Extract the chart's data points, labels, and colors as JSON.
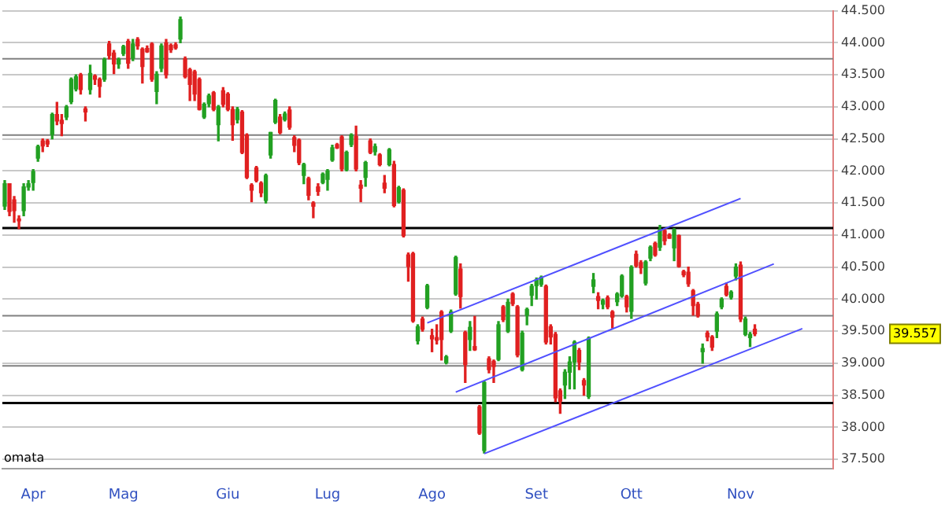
{
  "chart_data": {
    "type": "candlestick",
    "categories": [
      null,
      null,
      null,
      null,
      null,
      null,
      "Apr",
      null,
      null,
      null,
      null,
      null,
      null,
      null,
      null,
      null,
      null,
      null,
      null,
      null,
      null,
      null,
      null,
      null,
      null,
      "Mag",
      null,
      null,
      null,
      null,
      null,
      null,
      null,
      null,
      null,
      null,
      null,
      null,
      null,
      null,
      null,
      null,
      null,
      null,
      null,
      null,
      null,
      "Giu",
      null,
      null,
      null,
      null,
      null,
      null,
      null,
      null,
      null,
      null,
      null,
      null,
      null,
      null,
      null,
      null,
      null,
      null,
      null,
      null,
      "Lug",
      null,
      null,
      null,
      null,
      null,
      null,
      null,
      null,
      null,
      null,
      null,
      null,
      null,
      null,
      null,
      null,
      null,
      null,
      null,
      null,
      null,
      "Ago",
      null,
      null,
      null,
      null,
      null,
      null,
      null,
      null,
      null,
      null,
      null,
      null,
      null,
      null,
      null,
      null,
      null,
      null,
      null,
      null,
      null,
      "Set",
      null,
      null,
      null,
      null,
      null,
      null,
      null,
      null,
      null,
      null,
      null,
      null,
      null,
      null,
      null,
      null,
      null,
      null,
      null,
      "Ott",
      null,
      null,
      null,
      null,
      null,
      null,
      null,
      null,
      null,
      null,
      null,
      null,
      null,
      null,
      null,
      null,
      null,
      null,
      null,
      null,
      null,
      null,
      "Nov",
      null,
      null,
      null,
      null,
      null,
      null,
      null,
      null,
      null,
      null,
      null,
      null,
      null,
      null,
      null,
      null,
      null,
      null,
      null
    ],
    "ohlc": [
      [
        41.45,
        41.85,
        41.4,
        41.8
      ],
      [
        41.8,
        41.8,
        41.3,
        41.37
      ],
      [
        41.55,
        41.6,
        41.2,
        41.38
      ],
      [
        41.25,
        41.3,
        41.1,
        41.22
      ],
      [
        41.38,
        41.8,
        41.3,
        41.75
      ],
      [
        41.75,
        41.85,
        41.7,
        41.8
      ],
      [
        41.82,
        42.02,
        41.7,
        41.99
      ],
      [
        42.2,
        42.4,
        42.15,
        42.38
      ],
      [
        42.47,
        42.5,
        42.3,
        42.39
      ],
      [
        42.47,
        42.49,
        42.38,
        42.42
      ],
      [
        42.57,
        42.9,
        42.5,
        42.88
      ],
      [
        42.88,
        43.07,
        42.72,
        42.78
      ],
      [
        42.79,
        42.88,
        42.55,
        42.74
      ],
      [
        42.84,
        43.02,
        42.8,
        43.0
      ],
      [
        43.08,
        43.45,
        43.05,
        43.43
      ],
      [
        43.28,
        43.5,
        43.25,
        43.47
      ],
      [
        43.5,
        43.52,
        43.2,
        43.27
      ],
      [
        42.97,
        43.0,
        42.78,
        42.92
      ],
      [
        43.27,
        43.65,
        43.2,
        43.52
      ],
      [
        43.48,
        43.5,
        43.35,
        43.43
      ],
      [
        43.43,
        43.45,
        43.15,
        43.32
      ],
      [
        43.43,
        43.76,
        43.4,
        43.74
      ],
      [
        43.98,
        44.02,
        43.75,
        43.8
      ],
      [
        43.84,
        43.88,
        43.52,
        43.67
      ],
      [
        43.67,
        43.76,
        43.6,
        43.74
      ],
      [
        43.83,
        43.96,
        43.8,
        43.94
      ],
      [
        44.02,
        44.05,
        43.6,
        43.68
      ],
      [
        43.76,
        44.05,
        43.72,
        43.98
      ],
      [
        44.05,
        44.08,
        43.9,
        43.95
      ],
      [
        43.9,
        43.92,
        43.37,
        43.63
      ],
      [
        43.91,
        43.95,
        43.85,
        43.86
      ],
      [
        43.98,
        44.0,
        43.4,
        43.43
      ],
      [
        43.24,
        43.55,
        43.05,
        43.51
      ],
      [
        43.6,
        43.98,
        43.55,
        43.95
      ],
      [
        44.0,
        44.05,
        43.45,
        43.5
      ],
      [
        43.96,
        43.98,
        43.85,
        43.89
      ],
      [
        43.97,
        44.0,
        43.9,
        43.92
      ],
      [
        44.06,
        44.4,
        44.0,
        44.36
      ],
      [
        43.75,
        43.78,
        43.45,
        43.47
      ],
      [
        43.58,
        43.6,
        43.1,
        43.35
      ],
      [
        43.55,
        43.57,
        43.1,
        43.2
      ],
      [
        43.43,
        43.45,
        42.95,
        42.96
      ],
      [
        42.84,
        43.06,
        42.82,
        43.04
      ],
      [
        43.05,
        43.2,
        43.0,
        43.17
      ],
      [
        43.22,
        43.24,
        42.94,
        42.96
      ],
      [
        42.72,
        43.02,
        42.47,
        43.0
      ],
      [
        43.25,
        43.3,
        43.0,
        43.04
      ],
      [
        43.2,
        43.22,
        42.94,
        42.96
      ],
      [
        42.96,
        43.0,
        42.48,
        42.72
      ],
      [
        42.8,
        42.99,
        42.75,
        42.96
      ],
      [
        42.92,
        42.94,
        42.27,
        42.29
      ],
      [
        42.56,
        42.58,
        41.88,
        41.9
      ],
      [
        41.78,
        41.8,
        41.52,
        41.7
      ],
      [
        42.05,
        42.07,
        41.83,
        41.85
      ],
      [
        41.81,
        41.83,
        41.6,
        41.66
      ],
      [
        41.54,
        41.95,
        41.5,
        41.93
      ],
      [
        42.25,
        42.6,
        42.2,
        42.6
      ],
      [
        42.76,
        43.12,
        42.74,
        43.1
      ],
      [
        42.84,
        42.88,
        42.58,
        42.6
      ],
      [
        42.8,
        42.92,
        42.78,
        42.89
      ],
      [
        42.95,
        43.0,
        42.65,
        42.68
      ],
      [
        42.52,
        42.55,
        42.3,
        42.4
      ],
      [
        42.48,
        42.5,
        42.1,
        42.13
      ],
      [
        41.93,
        42.12,
        41.8,
        42.1
      ],
      [
        41.88,
        41.9,
        41.55,
        41.62
      ],
      [
        41.5,
        41.52,
        41.27,
        41.45
      ],
      [
        41.75,
        41.8,
        41.62,
        41.68
      ],
      [
        41.82,
        41.97,
        41.8,
        41.95
      ],
      [
        41.87,
        42.02,
        41.7,
        42.0
      ],
      [
        42.17,
        42.4,
        42.15,
        42.36
      ],
      [
        42.41,
        42.43,
        42.35,
        42.36
      ],
      [
        42.53,
        42.55,
        42.0,
        42.03
      ],
      [
        42.02,
        42.31,
        42.0,
        42.29
      ],
      [
        42.41,
        42.58,
        42.38,
        42.56
      ],
      [
        42.54,
        42.7,
        42.0,
        42.03
      ],
      [
        41.78,
        41.85,
        41.52,
        41.73
      ],
      [
        41.9,
        42.15,
        41.76,
        42.13
      ],
      [
        42.47,
        42.5,
        42.27,
        42.29
      ],
      [
        42.3,
        42.42,
        42.25,
        42.38
      ],
      [
        42.25,
        42.27,
        42.08,
        42.1
      ],
      [
        41.81,
        41.93,
        41.66,
        41.73
      ],
      [
        42.1,
        42.35,
        42.08,
        42.33
      ],
      [
        42.1,
        42.15,
        41.44,
        41.46
      ],
      [
        41.52,
        41.76,
        41.5,
        41.74
      ],
      [
        41.7,
        41.72,
        40.97,
        40.99
      ],
      [
        40.69,
        40.72,
        40.28,
        40.51
      ],
      [
        40.71,
        40.73,
        39.64,
        39.66
      ],
      [
        39.35,
        39.6,
        39.3,
        39.57
      ],
      [
        39.69,
        39.72,
        39.5,
        39.53
      ],
      [
        39.87,
        40.23,
        39.85,
        40.21
      ],
      [
        39.43,
        39.53,
        39.18,
        39.38
      ],
      [
        39.4,
        39.6,
        39.3,
        39.36
      ],
      [
        39.8,
        39.82,
        39.05,
        39.37
      ],
      [
        39.01,
        39.12,
        38.99,
        39.1
      ],
      [
        39.5,
        39.83,
        39.48,
        39.8
      ],
      [
        40.08,
        40.67,
        40.06,
        40.65
      ],
      [
        40.47,
        40.55,
        39.86,
        40.04
      ],
      [
        39.48,
        39.5,
        38.7,
        38.98
      ],
      [
        39.37,
        39.65,
        39.2,
        39.56
      ],
      [
        39.26,
        39.73,
        39.2,
        39.21
      ],
      [
        38.32,
        38.34,
        37.89,
        37.91
      ],
      [
        37.64,
        38.72,
        37.6,
        38.7
      ],
      [
        39.07,
        39.1,
        38.85,
        38.9
      ],
      [
        39.03,
        39.05,
        38.7,
        38.95
      ],
      [
        39.06,
        39.65,
        39.04,
        39.6
      ],
      [
        39.88,
        39.9,
        39.65,
        39.68
      ],
      [
        39.5,
        40.0,
        39.48,
        39.95
      ],
      [
        40.08,
        40.1,
        39.9,
        39.93
      ],
      [
        39.88,
        39.9,
        39.1,
        39.13
      ],
      [
        38.9,
        39.5,
        38.88,
        39.47
      ],
      [
        39.75,
        39.86,
        39.6,
        39.84
      ],
      [
        40.06,
        40.23,
        39.9,
        40.2
      ],
      [
        40.21,
        40.33,
        40.0,
        40.3
      ],
      [
        40.23,
        40.36,
        40.2,
        40.34
      ],
      [
        40.2,
        40.22,
        39.3,
        39.33
      ],
      [
        39.57,
        39.6,
        39.3,
        39.41
      ],
      [
        39.45,
        39.48,
        38.4,
        38.46
      ],
      [
        38.57,
        38.6,
        38.22,
        38.41
      ],
      [
        38.66,
        38.9,
        38.45,
        38.86
      ],
      [
        38.86,
        39.1,
        38.6,
        39.02
      ],
      [
        39.02,
        39.35,
        38.6,
        39.33
      ],
      [
        39.2,
        39.23,
        38.9,
        39.02
      ],
      [
        38.73,
        38.76,
        38.5,
        38.66
      ],
      [
        38.48,
        39.41,
        38.45,
        39.39
      ],
      [
        40.2,
        40.4,
        40.1,
        40.3
      ],
      [
        40.04,
        40.1,
        39.85,
        39.98
      ],
      [
        39.92,
        40.0,
        39.85,
        39.98
      ],
      [
        40.02,
        40.05,
        39.85,
        39.88
      ],
      [
        39.8,
        39.82,
        39.55,
        39.72
      ],
      [
        39.96,
        40.1,
        39.9,
        40.08
      ],
      [
        40.05,
        40.38,
        40.03,
        40.36
      ],
      [
        40.04,
        40.06,
        39.8,
        39.88
      ],
      [
        39.81,
        40.52,
        39.7,
        40.5
      ],
      [
        40.7,
        40.75,
        40.5,
        40.52
      ],
      [
        40.57,
        40.6,
        40.4,
        40.49
      ],
      [
        40.25,
        40.6,
        40.22,
        40.58
      ],
      [
        40.64,
        40.83,
        40.6,
        40.81
      ],
      [
        40.87,
        40.89,
        40.67,
        40.69
      ],
      [
        40.81,
        41.15,
        40.76,
        41.09
      ],
      [
        41.07,
        41.1,
        40.85,
        40.91
      ],
      [
        41.0,
        41.02,
        40.95,
        40.95
      ],
      [
        40.8,
        41.1,
        40.6,
        41.08
      ],
      [
        40.99,
        41.0,
        40.5,
        40.51
      ],
      [
        40.43,
        40.45,
        40.35,
        40.38
      ],
      [
        40.42,
        40.5,
        40.2,
        40.24
      ],
      [
        40.13,
        40.15,
        39.75,
        39.9
      ],
      [
        39.92,
        39.95,
        39.72,
        39.74
      ],
      [
        39.18,
        39.3,
        39.0,
        39.23
      ],
      [
        39.47,
        39.5,
        39.35,
        39.41
      ],
      [
        39.41,
        39.43,
        39.2,
        39.25
      ],
      [
        39.5,
        39.8,
        39.4,
        39.77
      ],
      [
        39.88,
        40.02,
        39.85,
        40.0
      ],
      [
        40.2,
        40.25,
        40.05,
        40.07
      ],
      [
        40.03,
        40.13,
        40.0,
        40.11
      ],
      [
        40.36,
        40.55,
        40.3,
        40.5
      ],
      [
        40.53,
        40.58,
        39.65,
        39.69
      ],
      [
        39.45,
        39.72,
        39.43,
        39.69
      ],
      [
        39.4,
        39.48,
        39.26,
        39.45
      ],
      [
        39.53,
        39.6,
        39.43,
        39.46
      ],
      null,
      null,
      null,
      null,
      null,
      null,
      null,
      null,
      null,
      null,
      null,
      null,
      null,
      null,
      null,
      null
    ],
    "ylim": [
      37.35,
      44.5
    ],
    "yticks": [
      {
        "value": 37.5,
        "label": "37.500"
      },
      {
        "value": 38,
        "label": "38.000"
      },
      {
        "value": 38.5,
        "label": "38.500"
      },
      {
        "value": 39,
        "label": "39.000"
      },
      {
        "value": 39.5,
        "label": "39.500"
      },
      {
        "value": 40,
        "label": "40.000"
      },
      {
        "value": 40.5,
        "label": "40.500"
      },
      {
        "value": 41,
        "label": "41.000"
      },
      {
        "value": 41.5,
        "label": "41.500"
      },
      {
        "value": 42,
        "label": "42.000"
      },
      {
        "value": 42.5,
        "label": "42.500"
      },
      {
        "value": 43,
        "label": "43.000"
      },
      {
        "value": 43.5,
        "label": "43.500"
      },
      {
        "value": 44,
        "label": "44.000"
      },
      {
        "value": 44.5,
        "label": "44.500"
      }
    ],
    "grid": "y",
    "legend": false,
    "series": [
      {
        "type": "line",
        "color": "#5050ff",
        "values": [
          null,
          null,
          null,
          null,
          null,
          null,
          null,
          null,
          null,
          null,
          null,
          null,
          null,
          null,
          null,
          null,
          null,
          null,
          null,
          null,
          null,
          null,
          null,
          null,
          null,
          null,
          null,
          null,
          null,
          null,
          null,
          null,
          null,
          null,
          null,
          null,
          null,
          null,
          null,
          null,
          null,
          null,
          null,
          null,
          null,
          null,
          null,
          null,
          null,
          null,
          null,
          null,
          null,
          null,
          null,
          null,
          null,
          null,
          null,
          null,
          null,
          null,
          null,
          null,
          null,
          null,
          null,
          null,
          null,
          null,
          null,
          null,
          null,
          null,
          null,
          null,
          null,
          null,
          null,
          null,
          null,
          null,
          null,
          null,
          null,
          null,
          null,
          null,
          null,
          39.63,
          null,
          null,
          null,
          null,
          null,
          null,
          null,
          null,
          null,
          null,
          null,
          null,
          null,
          null,
          null,
          null,
          null,
          null,
          null,
          null,
          null,
          null,
          null,
          null,
          null,
          null,
          null,
          null,
          null,
          null,
          null,
          null,
          null,
          null,
          null,
          null,
          null,
          null,
          null,
          null,
          null,
          null,
          null,
          null,
          null,
          null,
          null,
          null,
          null,
          null,
          null,
          null,
          null,
          null,
          null,
          null,
          null,
          null,
          null,
          null,
          null,
          null,
          null,
          null,
          null,
          41.57,
          null,
          null,
          null,
          null,
          null,
          null,
          null,
          null,
          null,
          null,
          null,
          null,
          null,
          null,
          null,
          null,
          null,
          null,
          null
        ]
      },
      {
        "type": "line",
        "color": "#5050ff",
        "values": [
          null,
          null,
          null,
          null,
          null,
          null,
          null,
          null,
          null,
          null,
          null,
          null,
          null,
          null,
          null,
          null,
          null,
          null,
          null,
          null,
          null,
          null,
          null,
          null,
          null,
          null,
          null,
          null,
          null,
          null,
          null,
          null,
          null,
          null,
          null,
          null,
          null,
          null,
          null,
          null,
          null,
          null,
          null,
          null,
          null,
          null,
          null,
          null,
          null,
          null,
          null,
          null,
          null,
          null,
          null,
          null,
          null,
          null,
          null,
          null,
          null,
          null,
          null,
          null,
          null,
          null,
          null,
          null,
          null,
          null,
          null,
          null,
          null,
          null,
          null,
          null,
          null,
          null,
          null,
          null,
          null,
          null,
          null,
          null,
          null,
          null,
          null,
          null,
          null,
          null,
          null,
          null,
          null,
          null,
          null,
          38.55,
          null,
          null,
          null,
          null,
          null,
          null,
          null,
          null,
          null,
          null,
          null,
          null,
          null,
          null,
          null,
          null,
          null,
          null,
          null,
          null,
          null,
          null,
          null,
          null,
          null,
          null,
          null,
          null,
          null,
          null,
          null,
          null,
          null,
          null,
          null,
          null,
          null,
          null,
          null,
          null,
          null,
          null,
          null,
          null,
          null,
          null,
          null,
          null,
          null,
          null,
          null,
          null,
          null,
          null,
          null,
          null,
          null,
          null,
          null,
          null,
          null,
          null,
          null,
          null,
          null,
          null,
          40.55,
          null,
          null,
          null,
          null,
          null,
          null,
          null,
          null,
          null,
          null,
          null,
          null
        ]
      },
      {
        "type": "line",
        "color": "#5050ff",
        "values": [
          null,
          null,
          null,
          null,
          null,
          null,
          null,
          null,
          null,
          null,
          null,
          null,
          null,
          null,
          null,
          null,
          null,
          null,
          null,
          null,
          null,
          null,
          null,
          null,
          null,
          null,
          null,
          null,
          null,
          null,
          null,
          null,
          null,
          null,
          null,
          null,
          null,
          null,
          null,
          null,
          null,
          null,
          null,
          null,
          null,
          null,
          null,
          null,
          null,
          null,
          null,
          null,
          null,
          null,
          null,
          null,
          null,
          null,
          null,
          null,
          null,
          null,
          null,
          null,
          null,
          null,
          null,
          null,
          null,
          null,
          null,
          null,
          null,
          null,
          null,
          null,
          null,
          null,
          null,
          null,
          null,
          null,
          null,
          null,
          null,
          null,
          null,
          null,
          null,
          null,
          null,
          null,
          null,
          null,
          null,
          null,
          null,
          null,
          null,
          null,
          null,
          37.59,
          null,
          null,
          null,
          null,
          null,
          null,
          null,
          null,
          null,
          null,
          null,
          null,
          null,
          null,
          null,
          null,
          null,
          null,
          null,
          null,
          null,
          null,
          null,
          null,
          null,
          null,
          null,
          null,
          null,
          null,
          null,
          null,
          null,
          null,
          null,
          null,
          null,
          null,
          null,
          null,
          null,
          null,
          null,
          null,
          null,
          null,
          null,
          null,
          null,
          null,
          null,
          null,
          null,
          null,
          null,
          null,
          null,
          null,
          null,
          null,
          null,
          null,
          null,
          null,
          null,
          null,
          39.54,
          null,
          null,
          null,
          null,
          null,
          null
        ]
      }
    ],
    "ref_lines": [
      {
        "axis": "y",
        "value": 43.75,
        "color": "#808080"
      },
      {
        "axis": "y",
        "value": 42.56,
        "color": "#808080"
      },
      {
        "axis": "y",
        "value": 41.11,
        "color": "#000000"
      },
      {
        "axis": "y",
        "value": 39.74,
        "color": "#808080"
      },
      {
        "axis": "y",
        "value": 38.96,
        "color": "#808080"
      },
      {
        "axis": "y",
        "value": 38.38,
        "color": "#000000"
      }
    ],
    "annotations": [
      "39.557",
      "omata"
    ]
  }
}
